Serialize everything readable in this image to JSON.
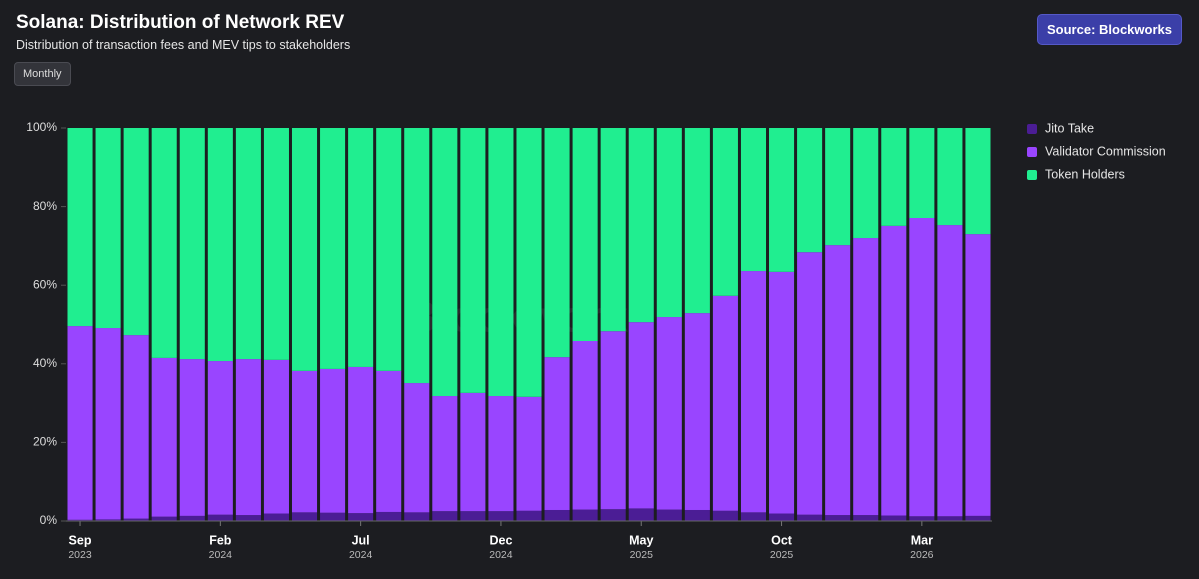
{
  "header": {
    "title": "Solana: Distribution of Network REV",
    "subtitle": "Distribution of transaction fees and MEV tips to stakeholders",
    "source_button": "Source: Blockworks",
    "period_button": "Monthly"
  },
  "chart_data": {
    "type": "stacked_bar",
    "watermark": "Blockworks",
    "categories": [
      "Sep",
      null,
      null,
      null,
      null,
      "Feb",
      null,
      null,
      null,
      null,
      "Jul",
      null,
      null,
      null,
      null,
      "Dec",
      null,
      null,
      null,
      null,
      "May",
      null,
      null,
      null,
      null,
      "Oct",
      null,
      null,
      null,
      null,
      "Mar",
      null,
      null
    ],
    "category_years": [
      "2023",
      null,
      null,
      null,
      null,
      "2024",
      null,
      null,
      null,
      null,
      "2024",
      null,
      null,
      null,
      null,
      "2024",
      null,
      null,
      null,
      null,
      "2025",
      null,
      null,
      null,
      null,
      "2025",
      null,
      null,
      null,
      null,
      "2026",
      null,
      null
    ],
    "series": [
      {
        "name": "Jito Take",
        "color": "#4b1d95",
        "values": [
          0.3,
          0.4,
          0.6,
          1.1,
          1.3,
          1.6,
          1.5,
          1.9,
          2.2,
          2.1,
          2.0,
          2.3,
          2.2,
          2.5,
          2.5,
          2.5,
          2.6,
          2.8,
          2.9,
          3.0,
          3.2,
          2.9,
          2.8,
          2.6,
          2.2,
          1.9,
          1.6,
          1.5,
          1.5,
          1.4,
          1.2,
          1.2,
          1.3
        ]
      },
      {
        "name": "Validator Commission",
        "color": "#9945ff",
        "values": [
          49.3,
          48.7,
          46.7,
          40.4,
          39.9,
          39.1,
          39.7,
          39.1,
          36.0,
          36.6,
          37.2,
          35.9,
          32.9,
          29.3,
          30.1,
          29.3,
          29.0,
          38.9,
          42.9,
          45.3,
          47.4,
          49.0,
          50.1,
          54.7,
          61.4,
          61.5,
          66.8,
          68.7,
          70.5,
          73.7,
          75.9,
          74.1,
          71.7
        ]
      },
      {
        "name": "Token Holders",
        "color": "#20ee90",
        "values": [
          50.4,
          50.9,
          52.7,
          58.5,
          58.8,
          59.3,
          58.8,
          59.0,
          61.8,
          61.3,
          60.8,
          61.8,
          64.9,
          68.2,
          67.4,
          68.2,
          68.4,
          58.3,
          54.2,
          51.7,
          49.4,
          48.1,
          47.1,
          42.7,
          36.4,
          36.6,
          31.6,
          29.8,
          28.0,
          24.9,
          22.9,
          24.7,
          27.0
        ]
      }
    ],
    "ylim": [
      0,
      100
    ],
    "yticks": [
      {
        "value": 0,
        "label": "0%"
      },
      {
        "value": 20,
        "label": "20%"
      },
      {
        "value": 40,
        "label": "40%"
      },
      {
        "value": 60,
        "label": "60%"
      },
      {
        "value": 80,
        "label": "80%"
      },
      {
        "value": 100,
        "label": "100%"
      }
    ],
    "legend": "right"
  }
}
